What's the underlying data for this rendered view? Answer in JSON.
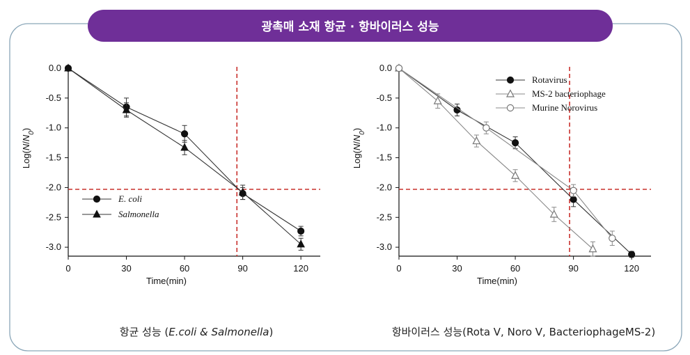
{
  "banner": {
    "title": "광촉매 소재 항균 · 항바이러스 성능",
    "color": "#6f2f98"
  },
  "frame_color": "#8aa6b8",
  "chart_data": [
    {
      "type": "line",
      "xlabel": "Time(min)",
      "ylabel_pre": "Log(",
      "ylabel_italic": "N",
      "ylabel_mid": "/",
      "ylabel_italic2": "N",
      "ylabel_sub": "0",
      "ylabel_post": ")",
      "xlim": [
        0,
        130
      ],
      "ylim": [
        -3.15,
        0
      ],
      "xticks": [
        "0",
        "30",
        "60",
        "90",
        "120"
      ],
      "xtick_values": [
        0,
        30,
        60,
        90,
        120
      ],
      "yticks": [
        "0.0",
        "-0.5",
        "-1.0",
        "-1.5",
        "-2.0",
        "-2.5",
        "-3.0"
      ],
      "ytick_values": [
        0,
        -0.5,
        -1.0,
        -1.5,
        -2.0,
        -2.5,
        -3.0
      ],
      "reference_lines": {
        "x": 87,
        "y": -2.03,
        "color": "#c8302c"
      },
      "legend_position": "lower-left",
      "series": [
        {
          "name": "E. coli",
          "marker": "circle-filled",
          "x": [
            0,
            30,
            60,
            90,
            120
          ],
          "y": [
            0,
            -0.65,
            -1.1,
            -2.1,
            -2.73
          ],
          "err": [
            0,
            0.15,
            0.14,
            0.1,
            0.08
          ]
        },
        {
          "name": "Salmonella",
          "marker": "triangle-filled",
          "x": [
            0,
            30,
            60,
            90,
            120
          ],
          "y": [
            0,
            -0.7,
            -1.33,
            -2.08,
            -2.95
          ],
          "err": [
            0,
            0.12,
            0.12,
            0.12,
            0.1
          ]
        }
      ],
      "caption_pre": "항균 성능 (",
      "caption_italic": "E.coli & Salmonella",
      "caption_post": ")"
    },
    {
      "type": "line",
      "xlabel": "Time(min)",
      "ylabel_pre": "Log(",
      "ylabel_italic": "N",
      "ylabel_mid": "/",
      "ylabel_italic2": "N",
      "ylabel_sub": "0",
      "ylabel_post": ")",
      "xlim": [
        0,
        130
      ],
      "ylim": [
        -3.15,
        0
      ],
      "xticks": [
        "0",
        "30",
        "60",
        "90",
        "120"
      ],
      "xtick_values": [
        0,
        30,
        60,
        90,
        120
      ],
      "yticks": [
        "0.0",
        "-0.5",
        "-1.0",
        "-1.5",
        "-2.0",
        "-2.5",
        "-3.0"
      ],
      "ytick_values": [
        0,
        -0.5,
        -1.0,
        -1.5,
        -2.0,
        -2.5,
        -3.0
      ],
      "reference_lines": {
        "x": 88,
        "y": -2.03,
        "color": "#c8302c"
      },
      "legend_position": "top-right",
      "series": [
        {
          "name": "Rotavirus",
          "marker": "circle-filled",
          "x": [
            0,
            30,
            60,
            90,
            120
          ],
          "y": [
            0,
            -0.7,
            -1.25,
            -2.2,
            -3.12
          ],
          "err": [
            0,
            0.1,
            0.1,
            0.12,
            0.05
          ]
        },
        {
          "name": "MS-2 bacteriophage",
          "marker": "triangle-open",
          "x": [
            0,
            20,
            40,
            60,
            80,
            100
          ],
          "y": [
            0,
            -0.55,
            -1.22,
            -1.8,
            -2.45,
            -3.03
          ],
          "err": [
            0,
            0.12,
            0.1,
            0.1,
            0.12,
            0.12
          ]
        },
        {
          "name": "Murine Norovirus",
          "marker": "circle-open",
          "x": [
            0,
            45,
            90,
            110
          ],
          "y": [
            0,
            -1.0,
            -2.05,
            -2.85
          ],
          "err": [
            0,
            0.1,
            0.1,
            0.12
          ]
        }
      ],
      "caption_pre": "항바이러스 성능(Rota V, Noro V, BacteriophageMS-2)",
      "caption_italic": "",
      "caption_post": ""
    }
  ]
}
